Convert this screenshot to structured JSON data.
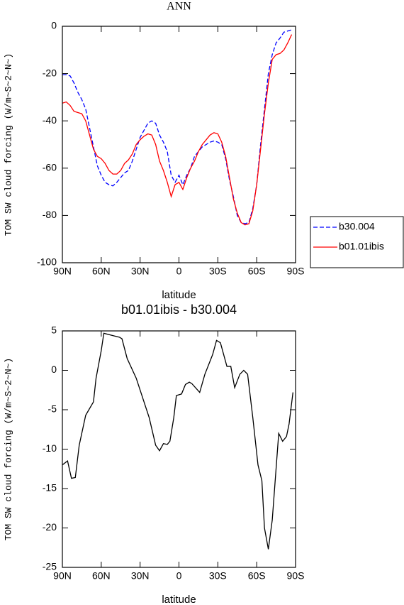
{
  "chart_data": [
    {
      "type": "line",
      "title": "ANN",
      "xlabel": "latitude",
      "ylabel": "TOM SW cloud forcing (W/m~S~2~N~)",
      "xlim": [
        90,
        -90
      ],
      "xticks": [
        {
          "value": 90,
          "label": "90N"
        },
        {
          "value": 60,
          "label": "60N"
        },
        {
          "value": 30,
          "label": "30N"
        },
        0,
        {
          "value": -30,
          "label": "30S"
        },
        {
          "value": -60,
          "label": "60S"
        },
        {
          "value": -90,
          "label": "90S"
        }
      ],
      "ylim": [
        -100,
        0
      ],
      "yticks": [
        0,
        -20,
        -40,
        -60,
        -80,
        -100
      ],
      "legend": "outside right",
      "x": [
        90,
        87,
        84,
        81,
        78,
        75,
        72,
        69,
        66,
        63,
        60,
        57,
        54,
        51,
        48,
        45,
        42,
        39,
        36,
        33,
        30,
        27,
        24,
        21,
        18,
        15,
        12,
        9,
        6,
        3,
        0,
        -3,
        -6,
        -9,
        -12,
        -15,
        -18,
        -21,
        -24,
        -27,
        -30,
        -33,
        -36,
        -39,
        -42,
        -45,
        -48,
        -51,
        -54,
        -57,
        -60,
        -63,
        -66,
        -69,
        -72,
        -75,
        -78,
        -81,
        -84,
        -87
      ],
      "series": [
        {
          "name": "b30.004",
          "color": "#0000ff",
          "dash": "dashed",
          "values": [
            -20.5,
            -20.5,
            -21,
            -24,
            -28,
            -31,
            -35,
            -43,
            -51,
            -59,
            -63,
            -66,
            -67,
            -67.5,
            -66,
            -64,
            -62,
            -61,
            -57,
            -52,
            -47,
            -44,
            -41,
            -40,
            -41,
            -46,
            -49,
            -53,
            -63,
            -66,
            -63,
            -67,
            -63,
            -60,
            -55,
            -53,
            -51,
            -50,
            -49,
            -48.5,
            -49,
            -50,
            -56,
            -65,
            -72,
            -80,
            -83,
            -83.5,
            -83,
            -77,
            -67,
            -50,
            -35,
            -20,
            -12,
            -7,
            -5,
            -2.5,
            -2,
            -1.5
          ]
        },
        {
          "name": "b01.01ibis",
          "color": "#ff0000",
          "dash": "solid",
          "values": [
            -32.5,
            -32,
            -33.5,
            -36,
            -36.5,
            -37,
            -40,
            -46,
            -52,
            -55,
            -56,
            -58,
            -61,
            -62.5,
            -62.5,
            -61,
            -58,
            -56.5,
            -54,
            -50,
            -48,
            -46.5,
            -45.5,
            -46,
            -50,
            -57,
            -61,
            -66,
            -72,
            -67,
            -66,
            -69,
            -64,
            -60,
            -57,
            -53,
            -50,
            -48,
            -46,
            -45,
            -45.5,
            -49,
            -55,
            -64,
            -73,
            -79,
            -83,
            -84,
            -83.5,
            -78,
            -67,
            -52,
            -37,
            -24,
            -14,
            -12,
            -11.5,
            -10,
            -7,
            -3.5
          ]
        }
      ]
    },
    {
      "type": "line",
      "title": "b01.01ibis - b30.004",
      "xlabel": "latitude",
      "ylabel": "TOM SW cloud forcing (W/m~S~2~N~)",
      "xlim": [
        90,
        -90
      ],
      "xticks": [
        {
          "value": 90,
          "label": "90N"
        },
        {
          "value": 60,
          "label": "60N"
        },
        {
          "value": 30,
          "label": "30N"
        },
        0,
        {
          "value": -30,
          "label": "30S"
        },
        {
          "value": -60,
          "label": "60S"
        },
        {
          "value": -90,
          "label": "90S"
        }
      ],
      "ylim": [
        -25,
        5
      ],
      "yticks": [
        5,
        0,
        -5,
        -10,
        -15,
        -20,
        -25
      ],
      "x": [
        90,
        86,
        83,
        80,
        77,
        72,
        66,
        64,
        60,
        58,
        51,
        46,
        44,
        40,
        33,
        23,
        18,
        15,
        12,
        9,
        7,
        4,
        2,
        -2,
        -5,
        -8,
        -10,
        -16,
        -20,
        -26,
        -29,
        -32,
        -37,
        -40,
        -43,
        -47,
        -50,
        -53,
        -57,
        -61,
        -64,
        -66,
        -69,
        -72,
        -77,
        -80,
        -83,
        -85,
        -88
      ],
      "series": [
        {
          "name": "b01.01ibis - b30.004",
          "color": "#000000",
          "dash": "solid",
          "values": [
            -12,
            -11.5,
            -13.7,
            -13.6,
            -9.5,
            -5.7,
            -4,
            -1,
            2.5,
            4.7,
            4.4,
            4.2,
            4,
            1.5,
            -1,
            -6,
            -9.5,
            -10.2,
            -9.3,
            -9.4,
            -9,
            -6,
            -3.2,
            -3,
            -1.8,
            -1.5,
            -1.7,
            -2.8,
            -0.5,
            2,
            3.8,
            3.5,
            0.5,
            0.5,
            -2.2,
            -0.5,
            0,
            -0.5,
            -6,
            -12,
            -14,
            -20,
            -22.7,
            -19,
            -8,
            -9,
            -8.4,
            -6.8,
            -2.8
          ]
        }
      ]
    }
  ]
}
